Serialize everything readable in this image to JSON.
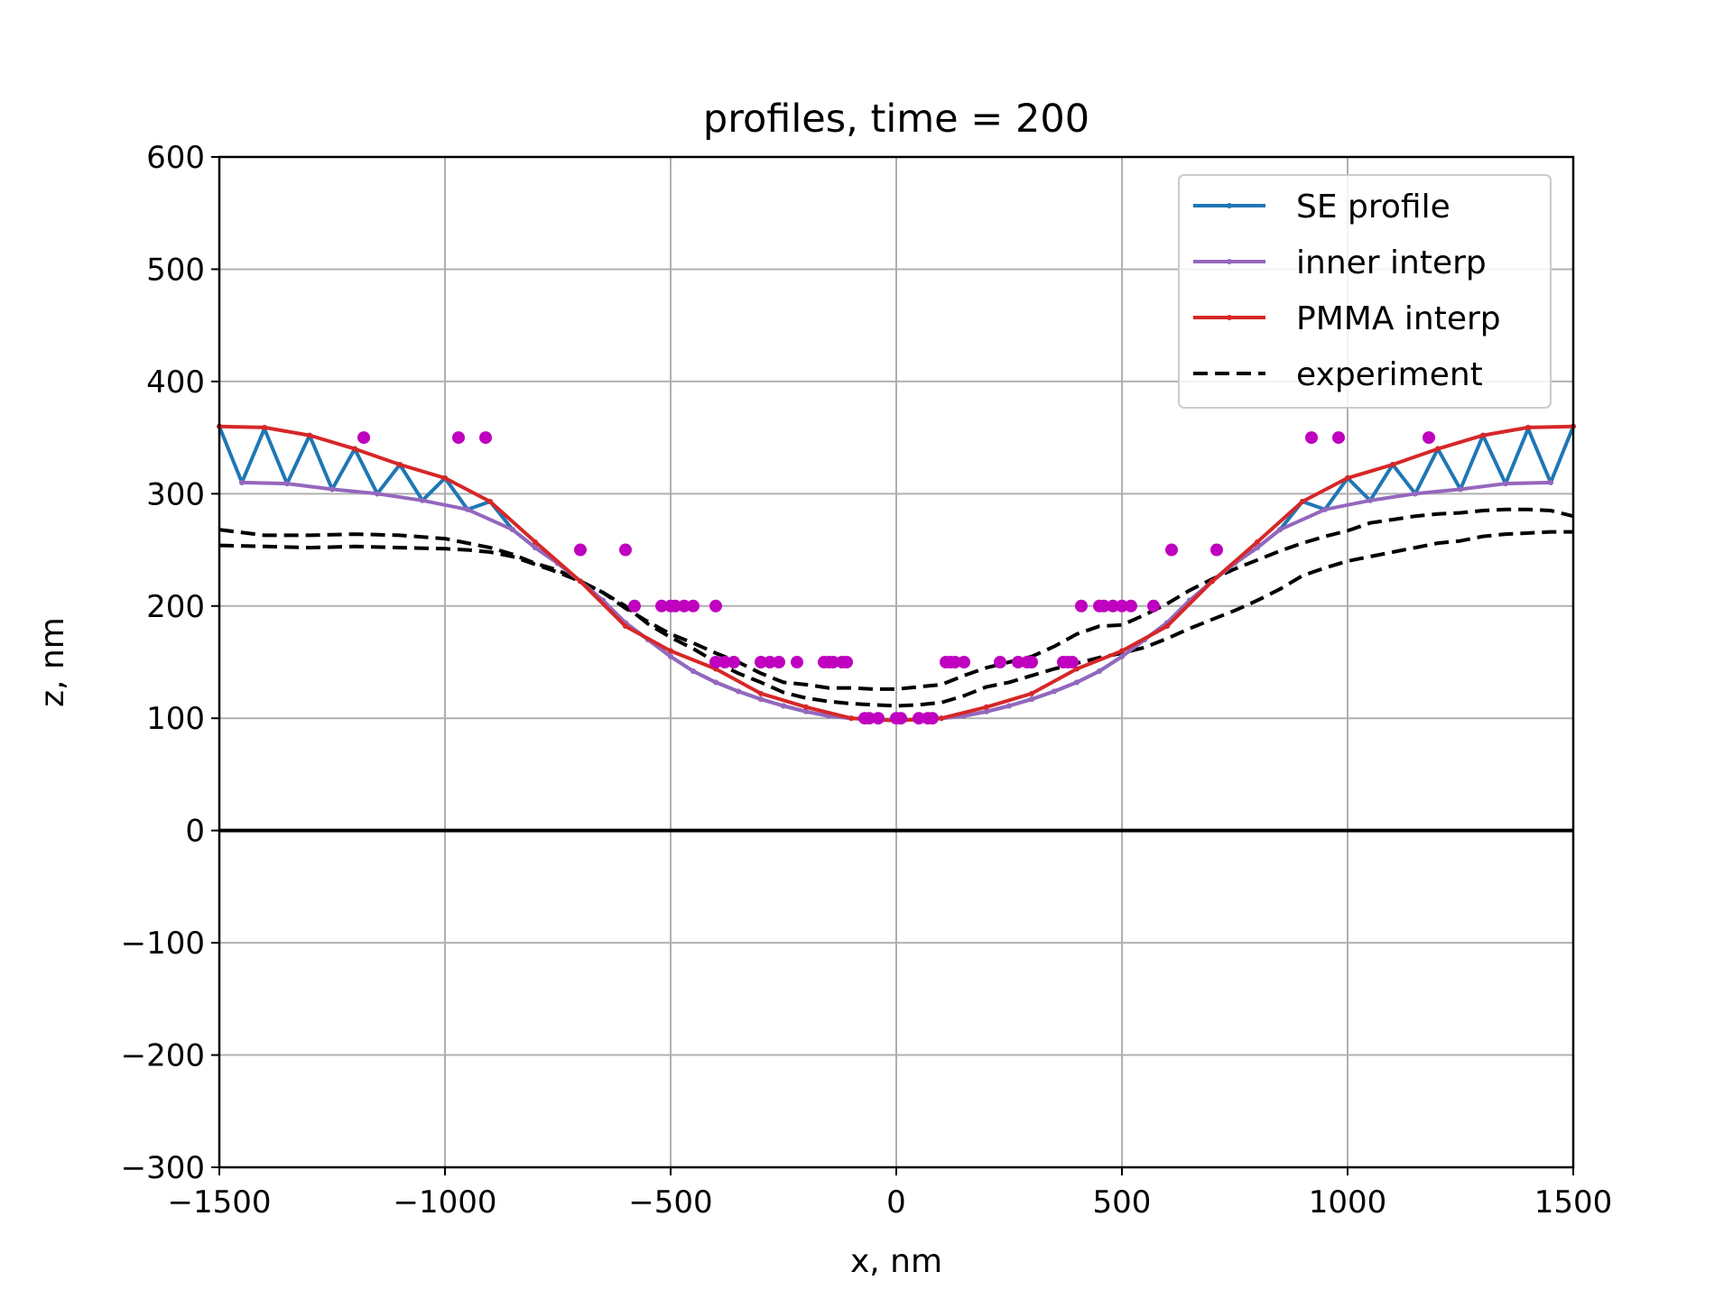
{
  "chart_data": {
    "type": "line",
    "title": "profiles, time = 200",
    "xlabel": "x, nm",
    "ylabel": "z, nm",
    "xlim": [
      -1500,
      1500
    ],
    "ylim": [
      -300,
      600
    ],
    "xticks": [
      -1500,
      -1000,
      -500,
      0,
      500,
      1000,
      1500
    ],
    "xtick_labels": [
      "−1500",
      "−1000",
      "−500",
      "0",
      "500",
      "1000",
      "1500"
    ],
    "yticks": [
      -300,
      -200,
      -100,
      0,
      100,
      200,
      300,
      400,
      500,
      600
    ],
    "ytick_labels": [
      "−300",
      "−200",
      "−100",
      "0",
      "100",
      "200",
      "300",
      "400",
      "500",
      "600"
    ],
    "grid": true,
    "legend_position": "top-right",
    "colors": {
      "se_profile": "#1f77b4",
      "inner_interp": "#9467bd",
      "pmma_interp": "#d62728",
      "experiment": "#000000",
      "scatter": "#bf00bf",
      "zero_line": "#000000"
    },
    "series": [
      {
        "name": "SE profile",
        "style": "solid-with-markers",
        "color": "#1f77b4",
        "x": [
          -1500,
          -1450,
          -1400,
          -1350,
          -1300,
          -1250,
          -1200,
          -1150,
          -1100,
          -1050,
          -1000,
          -950,
          -900,
          -850,
          -800,
          -750,
          -700,
          -650,
          -600,
          -550,
          -500,
          -450,
          -400,
          -350,
          -300,
          -250,
          -200,
          -150,
          -100,
          -50,
          0,
          50,
          100,
          150,
          200,
          250,
          300,
          350,
          400,
          450,
          500,
          550,
          600,
          650,
          700,
          750,
          800,
          850,
          900,
          950,
          1000,
          1050,
          1100,
          1150,
          1200,
          1250,
          1300,
          1350,
          1400,
          1450,
          1500
        ],
        "y": [
          360,
          310,
          358,
          309,
          352,
          304,
          340,
          300,
          326,
          294,
          314,
          286,
          293,
          268,
          252,
          238,
          222,
          205,
          185,
          170,
          155,
          142,
          132,
          124,
          117,
          111,
          106,
          102,
          100,
          99,
          98,
          99,
          100,
          102,
          106,
          111,
          117,
          124,
          132,
          142,
          155,
          170,
          185,
          205,
          222,
          238,
          252,
          268,
          293,
          286,
          314,
          294,
          326,
          300,
          340,
          304,
          352,
          309,
          358,
          310,
          360
        ]
      },
      {
        "name": "inner interp",
        "style": "solid-with-markers",
        "color": "#9467bd",
        "x": [
          -1450,
          -1350,
          -1250,
          -1150,
          -1050,
          -950,
          -850,
          -800,
          -750,
          -700,
          -650,
          -600,
          -550,
          -500,
          -450,
          -400,
          -350,
          -300,
          -250,
          -200,
          -150,
          -100,
          -50,
          0,
          50,
          100,
          150,
          200,
          250,
          300,
          350,
          400,
          450,
          500,
          550,
          600,
          650,
          700,
          750,
          800,
          850,
          950,
          1050,
          1150,
          1250,
          1350,
          1450
        ],
        "y": [
          310,
          309,
          304,
          300,
          294,
          286,
          268,
          252,
          238,
          222,
          205,
          185,
          170,
          155,
          142,
          132,
          124,
          117,
          111,
          106,
          102,
          100,
          99,
          98,
          99,
          100,
          102,
          106,
          111,
          117,
          124,
          132,
          142,
          155,
          170,
          185,
          205,
          222,
          238,
          252,
          268,
          286,
          294,
          300,
          304,
          309,
          310
        ]
      },
      {
        "name": "PMMA interp",
        "style": "solid-with-markers",
        "color": "#d62728",
        "x": [
          -1500,
          -1400,
          -1300,
          -1200,
          -1100,
          -1000,
          -900,
          -800,
          -700,
          -600,
          -500,
          -400,
          -300,
          -200,
          -100,
          0,
          100,
          200,
          300,
          400,
          500,
          600,
          700,
          800,
          900,
          1000,
          1100,
          1200,
          1300,
          1400,
          1500
        ],
        "y": [
          360,
          359,
          352,
          340,
          326,
          314,
          293,
          257,
          222,
          182,
          160,
          144,
          122,
          110,
          100,
          98,
          100,
          110,
          122,
          144,
          160,
          182,
          222,
          257,
          293,
          314,
          326,
          340,
          352,
          359,
          360
        ]
      },
      {
        "name": "experiment",
        "style": "dashed",
        "color": "#000000",
        "x": [
          -1500,
          -1400,
          -1300,
          -1200,
          -1100,
          -1000,
          -900,
          -850,
          -800,
          -750,
          -700,
          -650,
          -600,
          -550,
          -500,
          -450,
          -400,
          -350,
          -300,
          -250,
          -200,
          -150,
          -100,
          -50,
          0,
          50,
          100,
          150,
          200,
          250,
          300,
          350,
          400,
          450,
          500,
          550,
          600,
          650,
          700,
          750,
          800,
          850,
          900,
          950,
          1000,
          1050,
          1100,
          1150,
          1200,
          1250,
          1300,
          1350,
          1400,
          1450,
          1500
        ],
        "y": [
          268,
          263,
          263,
          264,
          263,
          260,
          252,
          246,
          238,
          232,
          222,
          212,
          198,
          186,
          175,
          167,
          158,
          150,
          140,
          132,
          130,
          127,
          127,
          126,
          126,
          128,
          130,
          138,
          145,
          150,
          155,
          164,
          175,
          182,
          183,
          192,
          202,
          214,
          224,
          233,
          241,
          249,
          256,
          262,
          267,
          274,
          277,
          280,
          282,
          283,
          285,
          286,
          286,
          285,
          280
        ]
      },
      {
        "name": "",
        "style": "dashed",
        "color": "#000000",
        "x": [
          -1500,
          -1400,
          -1300,
          -1200,
          -1100,
          -1000,
          -950,
          -900,
          -850,
          -800,
          -750,
          -700,
          -650,
          -600,
          -550,
          -500,
          -450,
          -400,
          -350,
          -300,
          -250,
          -200,
          -150,
          -100,
          -50,
          0,
          50,
          100,
          150,
          200,
          250,
          300,
          350,
          400,
          450,
          500,
          550,
          600,
          650,
          700,
          750,
          800,
          850,
          900,
          950,
          1000,
          1050,
          1100,
          1150,
          1200,
          1250,
          1300,
          1350,
          1400,
          1450,
          1500
        ],
        "y": [
          254,
          253,
          252,
          253,
          252,
          251,
          250,
          248,
          244,
          237,
          230,
          222,
          212,
          200,
          184,
          172,
          162,
          150,
          140,
          132,
          123,
          118,
          115,
          113,
          112,
          111,
          112,
          114,
          120,
          128,
          132,
          138,
          144,
          149,
          154,
          158,
          163,
          171,
          180,
          188,
          196,
          205,
          215,
          227,
          234,
          240,
          244,
          248,
          252,
          256,
          258,
          262,
          264,
          265,
          266,
          266
        ]
      }
    ],
    "scatter_points": {
      "color": "#bf00bf",
      "x": [
        -1180,
        -970,
        -910,
        -700,
        -600,
        -580,
        -520,
        -500,
        -490,
        -470,
        -450,
        -400,
        -400,
        -380,
        -360,
        -300,
        -280,
        -260,
        -220,
        -160,
        -150,
        -140,
        -120,
        -110,
        -70,
        -60,
        -40,
        0,
        10,
        50,
        70,
        80,
        110,
        120,
        130,
        150,
        230,
        270,
        290,
        300,
        370,
        380,
        390,
        410,
        450,
        460,
        480,
        500,
        520,
        570,
        610,
        710,
        920,
        980,
        1180
      ],
      "y": [
        350,
        350,
        350,
        250,
        250,
        200,
        200,
        200,
        200,
        200,
        200,
        200,
        150,
        150,
        150,
        150,
        150,
        150,
        150,
        150,
        150,
        150,
        150,
        150,
        100,
        100,
        100,
        100,
        100,
        100,
        100,
        100,
        150,
        150,
        150,
        150,
        150,
        150,
        150,
        150,
        150,
        150,
        150,
        200,
        200,
        200,
        200,
        200,
        200,
        200,
        250,
        250,
        350,
        350,
        350
      ]
    },
    "reference_lines": [
      {
        "axis": "y",
        "value": 0,
        "color": "#000000"
      }
    ]
  }
}
